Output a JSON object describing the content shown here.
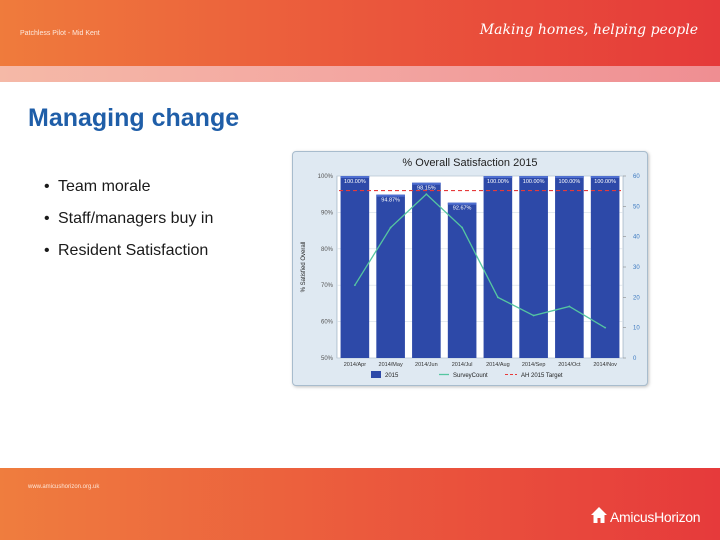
{
  "header": {
    "subtitle": "Patchless Pilot - Mid Kent",
    "tagline": "Making homes, helping people"
  },
  "slide": {
    "title": "Managing change",
    "bullets": [
      "Team morale",
      "Staff/managers buy in",
      "Resident Satisfaction"
    ]
  },
  "footer": {
    "url": "www.amicushorizon.org.uk",
    "logo_text": "AmicusHorizon"
  },
  "colors": {
    "header_start": "#ef7b3c",
    "header_end": "#e53a3a",
    "title": "#1f5ea8",
    "bar": "#2d49a8",
    "line": "#55c6a0",
    "target": "#e63a3a"
  },
  "chart_data": {
    "type": "bar",
    "title": "% Overall Satisfaction 2015",
    "ylabel": "% Satisfied Overall",
    "y2label": "",
    "categories": [
      "2014/Apr",
      "2014/May",
      "2014/Jun",
      "2014/Jul",
      "2014/Aug",
      "2014/Sep",
      "2014/Oct",
      "2014/Nov"
    ],
    "series": [
      {
        "name": "2015",
        "type": "bar",
        "axis": "left",
        "values": [
          100.0,
          94.87,
          98.15,
          92.67,
          100.0,
          100.0,
          100.0,
          100.0
        ],
        "labels": [
          "100.00%",
          "94.87%",
          "98.15%",
          "92.67%",
          "100.00%",
          "100.00%",
          "100.00%",
          "100.00%"
        ]
      },
      {
        "name": "SurveyCount",
        "type": "line",
        "axis": "right",
        "values": [
          24,
          43,
          54,
          43,
          20,
          14,
          17,
          10
        ]
      },
      {
        "name": "AH 2015 Target",
        "type": "line",
        "style": "dashed",
        "axis": "left",
        "values": [
          96,
          96,
          96,
          96,
          96,
          96,
          96,
          96
        ]
      }
    ],
    "ylim": [
      50,
      100
    ],
    "y2lim": [
      0,
      60
    ],
    "yticks": [
      "50%",
      "60%",
      "70%",
      "80%",
      "90%",
      "100%"
    ],
    "y2ticks": [
      "0",
      "10",
      "20",
      "30",
      "40",
      "50",
      "60"
    ],
    "legend": "bottom",
    "grid": true
  }
}
